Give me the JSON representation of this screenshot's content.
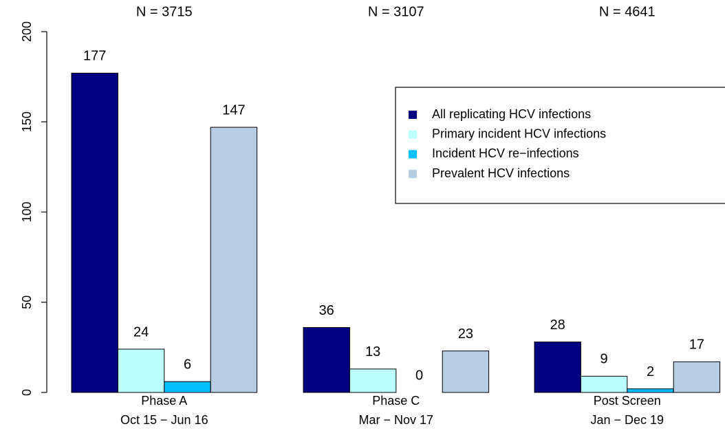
{
  "chart_data": {
    "type": "bar",
    "annotations": [
      "N = 3715",
      "N = 3107",
      "N = 4641"
    ],
    "categories": [
      "Phase A",
      "Phase C",
      "Post Screen"
    ],
    "category_periods": [
      "Oct 15 − Jun 16",
      "Mar − Nov 17",
      "Jan − Dec 19"
    ],
    "series": [
      {
        "name": "All replicating HCV infections",
        "color": "#000080",
        "values": [
          177,
          36,
          28
        ]
      },
      {
        "name": "Primary incident HCV infections",
        "color": "#bbffff",
        "values": [
          24,
          13,
          9
        ]
      },
      {
        "name": "Incident HCV re−infections",
        "color": "#00bfff",
        "values": [
          6,
          0,
          2
        ]
      },
      {
        "name": "Prevalent HCV infections",
        "color": "#b8cce4",
        "values": [
          147,
          23,
          17
        ]
      }
    ],
    "ylim": [
      0,
      200
    ],
    "yticks": [
      0,
      50,
      100,
      150,
      200
    ],
    "legend": "top-right"
  }
}
